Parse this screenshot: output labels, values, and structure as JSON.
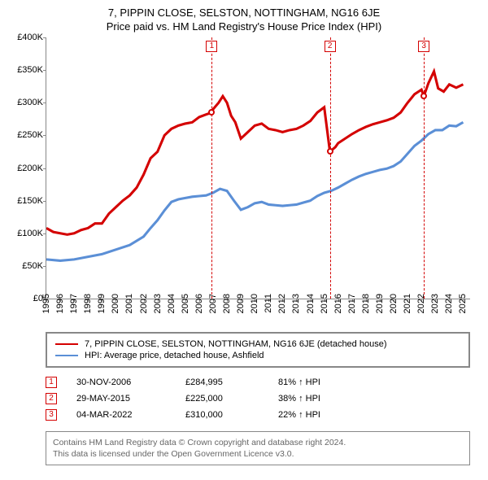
{
  "title_line1": "7, PIPPIN CLOSE, SELSTON, NOTTINGHAM, NG16 6JE",
  "title_line2": "Price paid vs. HM Land Registry's House Price Index (HPI)",
  "chart": {
    "type": "line",
    "background_color": "#ffffff",
    "ylim": [
      0,
      400000
    ],
    "ytick_step": 50000,
    "ytick_labels": [
      "£0",
      "£50K",
      "£100K",
      "£150K",
      "£200K",
      "£250K",
      "£300K",
      "£350K",
      "£400K"
    ],
    "xlim": [
      1995,
      2025.5
    ],
    "xtick_years": [
      1995,
      1996,
      1997,
      1998,
      1999,
      2000,
      2001,
      2002,
      2003,
      2004,
      2005,
      2006,
      2007,
      2008,
      2009,
      2010,
      2011,
      2012,
      2013,
      2014,
      2015,
      2016,
      2017,
      2018,
      2019,
      2020,
      2021,
      2022,
      2023,
      2024,
      2025
    ],
    "series": [
      {
        "id": "property",
        "color": "#d40000",
        "stroke_width": 1.6,
        "label": "7, PIPPIN CLOSE, SELSTON, NOTTINGHAM, NG16 6JE (detached house)",
        "points": [
          [
            1995,
            108000
          ],
          [
            1995.5,
            102000
          ],
          [
            1996,
            100000
          ],
          [
            1996.5,
            98000
          ],
          [
            1997,
            100000
          ],
          [
            1997.5,
            105000
          ],
          [
            1998,
            108000
          ],
          [
            1998.5,
            115000
          ],
          [
            1999,
            115000
          ],
          [
            1999.5,
            130000
          ],
          [
            2000,
            140000
          ],
          [
            2000.5,
            150000
          ],
          [
            2001,
            158000
          ],
          [
            2001.5,
            170000
          ],
          [
            2002,
            190000
          ],
          [
            2002.5,
            215000
          ],
          [
            2003,
            225000
          ],
          [
            2003.5,
            250000
          ],
          [
            2004,
            260000
          ],
          [
            2004.5,
            265000
          ],
          [
            2005,
            268000
          ],
          [
            2005.5,
            270000
          ],
          [
            2006,
            278000
          ],
          [
            2006.5,
            282000
          ],
          [
            2006.91,
            284995
          ],
          [
            2007,
            290000
          ],
          [
            2007.4,
            300000
          ],
          [
            2007.7,
            310000
          ],
          [
            2008,
            300000
          ],
          [
            2008.3,
            280000
          ],
          [
            2008.6,
            270000
          ],
          [
            2009,
            245000
          ],
          [
            2009.5,
            255000
          ],
          [
            2010,
            265000
          ],
          [
            2010.5,
            268000
          ],
          [
            2011,
            260000
          ],
          [
            2011.5,
            258000
          ],
          [
            2012,
            255000
          ],
          [
            2012.5,
            258000
          ],
          [
            2013,
            260000
          ],
          [
            2013.5,
            265000
          ],
          [
            2014,
            272000
          ],
          [
            2014.5,
            285000
          ],
          [
            2015,
            293000
          ],
          [
            2015.41,
            225000
          ],
          [
            2015.8,
            232000
          ],
          [
            2016,
            238000
          ],
          [
            2016.5,
            245000
          ],
          [
            2017,
            252000
          ],
          [
            2017.5,
            258000
          ],
          [
            2018,
            263000
          ],
          [
            2018.5,
            267000
          ],
          [
            2019,
            270000
          ],
          [
            2019.5,
            273000
          ],
          [
            2020,
            277000
          ],
          [
            2020.5,
            285000
          ],
          [
            2021,
            300000
          ],
          [
            2021.5,
            313000
          ],
          [
            2022,
            320000
          ],
          [
            2022.17,
            310000
          ],
          [
            2022.5,
            330000
          ],
          [
            2022.9,
            348000
          ],
          [
            2023.2,
            322000
          ],
          [
            2023.6,
            317000
          ],
          [
            2024,
            328000
          ],
          [
            2024.5,
            323000
          ],
          [
            2025,
            328000
          ]
        ]
      },
      {
        "id": "hpi",
        "color": "#5b8fd6",
        "stroke_width": 1.6,
        "label": "HPI: Average price, detached house, Ashfield",
        "points": [
          [
            1995,
            60000
          ],
          [
            1996,
            58000
          ],
          [
            1997,
            60000
          ],
          [
            1998,
            64000
          ],
          [
            1999,
            68000
          ],
          [
            2000,
            75000
          ],
          [
            2001,
            82000
          ],
          [
            2002,
            95000
          ],
          [
            2002.5,
            108000
          ],
          [
            2003,
            120000
          ],
          [
            2003.5,
            135000
          ],
          [
            2004,
            148000
          ],
          [
            2004.5,
            152000
          ],
          [
            2005,
            154000
          ],
          [
            2005.5,
            156000
          ],
          [
            2006,
            157000
          ],
          [
            2006.5,
            158000
          ],
          [
            2007,
            162000
          ],
          [
            2007.5,
            168000
          ],
          [
            2008,
            165000
          ],
          [
            2008.5,
            150000
          ],
          [
            2009,
            136000
          ],
          [
            2009.5,
            140000
          ],
          [
            2010,
            146000
          ],
          [
            2010.5,
            148000
          ],
          [
            2011,
            144000
          ],
          [
            2011.5,
            143000
          ],
          [
            2012,
            142000
          ],
          [
            2012.5,
            143000
          ],
          [
            2013,
            144000
          ],
          [
            2013.5,
            147000
          ],
          [
            2014,
            150000
          ],
          [
            2014.5,
            157000
          ],
          [
            2015,
            162000
          ],
          [
            2015.5,
            165000
          ],
          [
            2016,
            170000
          ],
          [
            2016.5,
            176000
          ],
          [
            2017,
            182000
          ],
          [
            2017.5,
            187000
          ],
          [
            2018,
            191000
          ],
          [
            2018.5,
            194000
          ],
          [
            2019,
            197000
          ],
          [
            2019.5,
            199000
          ],
          [
            2020,
            203000
          ],
          [
            2020.5,
            210000
          ],
          [
            2021,
            222000
          ],
          [
            2021.5,
            234000
          ],
          [
            2022,
            242000
          ],
          [
            2022.5,
            252000
          ],
          [
            2023,
            258000
          ],
          [
            2023.5,
            258000
          ],
          [
            2024,
            265000
          ],
          [
            2024.5,
            264000
          ],
          [
            2025,
            270000
          ]
        ]
      }
    ],
    "sale_markers": [
      {
        "num": "1",
        "x": 2006.91,
        "y": 284995,
        "color": "#d40000"
      },
      {
        "num": "2",
        "x": 2015.41,
        "y": 225000,
        "color": "#d40000"
      },
      {
        "num": "3",
        "x": 2022.17,
        "y": 310000,
        "color": "#d40000"
      }
    ],
    "vline_color": "#d40000"
  },
  "legend": {
    "border_color": "#888888",
    "items": [
      {
        "color": "#d40000",
        "label": "7, PIPPIN CLOSE, SELSTON, NOTTINGHAM, NG16 6JE (detached house)"
      },
      {
        "color": "#5b8fd6",
        "label": "HPI: Average price, detached house, Ashfield"
      }
    ]
  },
  "sales_table": [
    {
      "num": "1",
      "color": "#d40000",
      "date": "30-NOV-2006",
      "price": "£284,995",
      "pct": "81% ↑ HPI"
    },
    {
      "num": "2",
      "color": "#d40000",
      "date": "29-MAY-2015",
      "price": "£225,000",
      "pct": "38% ↑ HPI"
    },
    {
      "num": "3",
      "color": "#d40000",
      "date": "04-MAR-2022",
      "price": "£310,000",
      "pct": "22% ↑ HPI"
    }
  ],
  "attribution": {
    "line1": "Contains HM Land Registry data © Crown copyright and database right 2024.",
    "line2": "This data is licensed under the Open Government Licence v3.0."
  }
}
